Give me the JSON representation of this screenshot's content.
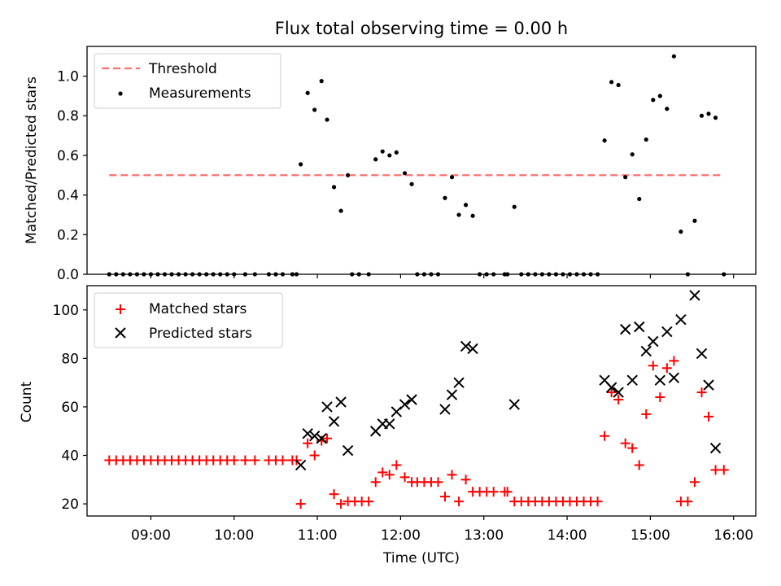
{
  "title": "Flux total observing time = 0.00 h",
  "xlabel": "Time (UTC)",
  "chart_data": [
    {
      "type": "scatter",
      "ylabel": "Matched/Predicted stars",
      "xlim": [
        "08:14",
        "16:16"
      ],
      "ylim": [
        0,
        1.15
      ],
      "yticks": [
        "0.0",
        "0.2",
        "0.4",
        "0.6",
        "0.8",
        "1.0"
      ],
      "legend_position": "top-left",
      "threshold": {
        "name": "Threshold",
        "value": 0.5,
        "x_start": "08:30",
        "x_end": "15:53",
        "color": "#ff7070"
      },
      "series": [
        {
          "name": "Measurements",
          "color": "#000000",
          "points": [
            [
              "08:30",
              0
            ],
            [
              "08:35",
              0
            ],
            [
              "08:40",
              0
            ],
            [
              "08:45",
              0
            ],
            [
              "08:50",
              0
            ],
            [
              "08:55",
              0
            ],
            [
              "09:00",
              0
            ],
            [
              "09:05",
              0
            ],
            [
              "09:10",
              0
            ],
            [
              "09:15",
              0
            ],
            [
              "09:20",
              0
            ],
            [
              "09:25",
              0
            ],
            [
              "09:30",
              0
            ],
            [
              "09:35",
              0
            ],
            [
              "09:40",
              0
            ],
            [
              "09:45",
              0
            ],
            [
              "09:50",
              0
            ],
            [
              "09:55",
              0
            ],
            [
              "10:00",
              0
            ],
            [
              "10:08",
              0
            ],
            [
              "10:15",
              0
            ],
            [
              "10:25",
              0
            ],
            [
              "10:30",
              0
            ],
            [
              "10:35",
              0
            ],
            [
              "10:42",
              0
            ],
            [
              "10:45",
              0
            ],
            [
              "10:48",
              0.555
            ],
            [
              "10:53",
              0.915
            ],
            [
              "10:58",
              0.83
            ],
            [
              "11:03",
              0.975
            ],
            [
              "11:07",
              0.78
            ],
            [
              "11:12",
              0.44
            ],
            [
              "11:17",
              0.32
            ],
            [
              "11:22",
              0.5
            ],
            [
              "11:25",
              0
            ],
            [
              "11:30",
              0
            ],
            [
              "11:37",
              0
            ],
            [
              "11:42",
              0.58
            ],
            [
              "11:47",
              0.62
            ],
            [
              "11:52",
              0.6
            ],
            [
              "11:57",
              0.615
            ],
            [
              "12:03",
              0.51
            ],
            [
              "12:08",
              0.455
            ],
            [
              "12:12",
              0
            ],
            [
              "12:17",
              0
            ],
            [
              "12:22",
              0
            ],
            [
              "12:27",
              0
            ],
            [
              "12:32",
              0.385
            ],
            [
              "12:37",
              0.49
            ],
            [
              "12:42",
              0.3
            ],
            [
              "12:47",
              0.35
            ],
            [
              "12:52",
              0.295
            ],
            [
              "12:57",
              0
            ],
            [
              "13:02",
              0
            ],
            [
              "13:07",
              0
            ],
            [
              "13:15",
              0
            ],
            [
              "13:17",
              0
            ],
            [
              "13:22",
              0.34
            ],
            [
              "13:27",
              0
            ],
            [
              "13:32",
              0
            ],
            [
              "13:37",
              0
            ],
            [
              "13:42",
              0
            ],
            [
              "13:47",
              0
            ],
            [
              "13:52",
              0
            ],
            [
              "13:57",
              0
            ],
            [
              "14:02",
              0
            ],
            [
              "14:07",
              0
            ],
            [
              "14:12",
              0
            ],
            [
              "14:17",
              0
            ],
            [
              "14:22",
              0
            ],
            [
              "14:27",
              0.675
            ],
            [
              "14:32",
              0.97
            ],
            [
              "14:37",
              0.955
            ],
            [
              "14:42",
              0.49
            ],
            [
              "14:47",
              0.605
            ],
            [
              "14:52",
              0.38
            ],
            [
              "14:57",
              0.68
            ],
            [
              "15:02",
              0.88
            ],
            [
              "15:07",
              0.9
            ],
            [
              "15:12",
              0.835
            ],
            [
              "15:17",
              1.1
            ],
            [
              "15:22",
              0.215
            ],
            [
              "15:27",
              0
            ],
            [
              "15:32",
              0.27
            ],
            [
              "15:37",
              0.8
            ],
            [
              "15:42",
              0.81
            ],
            [
              "15:47",
              0.79
            ],
            [
              "15:53",
              0
            ]
          ]
        }
      ]
    },
    {
      "type": "scatter",
      "ylabel": "Count",
      "xlim": [
        "08:14",
        "16:16"
      ],
      "ylim": [
        15,
        110
      ],
      "yticks": [
        "20",
        "40",
        "60",
        "80",
        "100"
      ],
      "xticks": [
        "09:00",
        "10:00",
        "11:00",
        "12:00",
        "13:00",
        "14:00",
        "15:00",
        "16:00"
      ],
      "legend_position": "top-left",
      "series": [
        {
          "name": "Matched stars",
          "marker": "+",
          "color": "#ff0000",
          "points": [
            [
              "08:30",
              38
            ],
            [
              "08:35",
              38
            ],
            [
              "08:40",
              38
            ],
            [
              "08:45",
              38
            ],
            [
              "08:50",
              38
            ],
            [
              "08:55",
              38
            ],
            [
              "09:00",
              38
            ],
            [
              "09:05",
              38
            ],
            [
              "09:10",
              38
            ],
            [
              "09:15",
              38
            ],
            [
              "09:20",
              38
            ],
            [
              "09:25",
              38
            ],
            [
              "09:30",
              38
            ],
            [
              "09:35",
              38
            ],
            [
              "09:40",
              38
            ],
            [
              "09:45",
              38
            ],
            [
              "09:50",
              38
            ],
            [
              "09:55",
              38
            ],
            [
              "10:00",
              38
            ],
            [
              "10:08",
              38
            ],
            [
              "10:15",
              38
            ],
            [
              "10:25",
              38
            ],
            [
              "10:30",
              38
            ],
            [
              "10:35",
              38
            ],
            [
              "10:42",
              38
            ],
            [
              "10:45",
              38
            ],
            [
              "10:48",
              20
            ],
            [
              "10:53",
              45
            ],
            [
              "10:58",
              40
            ],
            [
              "11:03",
              46
            ],
            [
              "11:07",
              47
            ],
            [
              "11:12",
              24
            ],
            [
              "11:17",
              20
            ],
            [
              "11:22",
              21
            ],
            [
              "11:27",
              21
            ],
            [
              "11:32",
              21
            ],
            [
              "11:37",
              21
            ],
            [
              "11:42",
              29
            ],
            [
              "11:47",
              33
            ],
            [
              "11:52",
              32
            ],
            [
              "11:57",
              36
            ],
            [
              "12:03",
              31
            ],
            [
              "12:08",
              29
            ],
            [
              "12:12",
              29
            ],
            [
              "12:17",
              29
            ],
            [
              "12:22",
              29
            ],
            [
              "12:27",
              29
            ],
            [
              "12:32",
              23
            ],
            [
              "12:37",
              32
            ],
            [
              "12:42",
              21
            ],
            [
              "12:47",
              30
            ],
            [
              "12:52",
              25
            ],
            [
              "12:57",
              25
            ],
            [
              "13:02",
              25
            ],
            [
              "13:07",
              25
            ],
            [
              "13:15",
              25
            ],
            [
              "13:17",
              25
            ],
            [
              "13:22",
              21
            ],
            [
              "13:27",
              21
            ],
            [
              "13:32",
              21
            ],
            [
              "13:37",
              21
            ],
            [
              "13:42",
              21
            ],
            [
              "13:47",
              21
            ],
            [
              "13:52",
              21
            ],
            [
              "13:57",
              21
            ],
            [
              "14:02",
              21
            ],
            [
              "14:07",
              21
            ],
            [
              "14:12",
              21
            ],
            [
              "14:17",
              21
            ],
            [
              "14:22",
              21
            ],
            [
              "14:27",
              48
            ],
            [
              "14:32",
              66
            ],
            [
              "14:37",
              63
            ],
            [
              "14:42",
              45
            ],
            [
              "14:47",
              43
            ],
            [
              "14:52",
              36
            ],
            [
              "14:57",
              57
            ],
            [
              "15:02",
              77
            ],
            [
              "15:07",
              64
            ],
            [
              "15:12",
              76
            ],
            [
              "15:17",
              79
            ],
            [
              "15:22",
              21
            ],
            [
              "15:27",
              21
            ],
            [
              "15:32",
              29
            ],
            [
              "15:37",
              66
            ],
            [
              "15:42",
              56
            ],
            [
              "15:47",
              34
            ],
            [
              "15:53",
              34
            ]
          ]
        },
        {
          "name": "Predicted stars",
          "marker": "x",
          "color": "#000000",
          "points": [
            [
              "10:48",
              36
            ],
            [
              "10:53",
              49
            ],
            [
              "10:58",
              48
            ],
            [
              "11:03",
              47
            ],
            [
              "11:07",
              60
            ],
            [
              "11:12",
              54
            ],
            [
              "11:17",
              62
            ],
            [
              "11:22",
              42
            ],
            [
              "11:42",
              50
            ],
            [
              "11:47",
              53
            ],
            [
              "11:52",
              53
            ],
            [
              "11:57",
              58
            ],
            [
              "12:03",
              61
            ],
            [
              "12:08",
              63
            ],
            [
              "12:32",
              59
            ],
            [
              "12:37",
              65
            ],
            [
              "12:42",
              70
            ],
            [
              "12:47",
              85
            ],
            [
              "12:52",
              84
            ],
            [
              "13:22",
              61
            ],
            [
              "14:27",
              71
            ],
            [
              "14:32",
              68
            ],
            [
              "14:37",
              66
            ],
            [
              "14:42",
              92
            ],
            [
              "14:47",
              71
            ],
            [
              "14:52",
              93
            ],
            [
              "14:57",
              83
            ],
            [
              "15:02",
              87
            ],
            [
              "15:07",
              71
            ],
            [
              "15:12",
              91
            ],
            [
              "15:17",
              72
            ],
            [
              "15:22",
              96
            ],
            [
              "15:32",
              106
            ],
            [
              "15:37",
              82
            ],
            [
              "15:42",
              69
            ],
            [
              "15:47",
              43
            ]
          ]
        }
      ]
    }
  ]
}
